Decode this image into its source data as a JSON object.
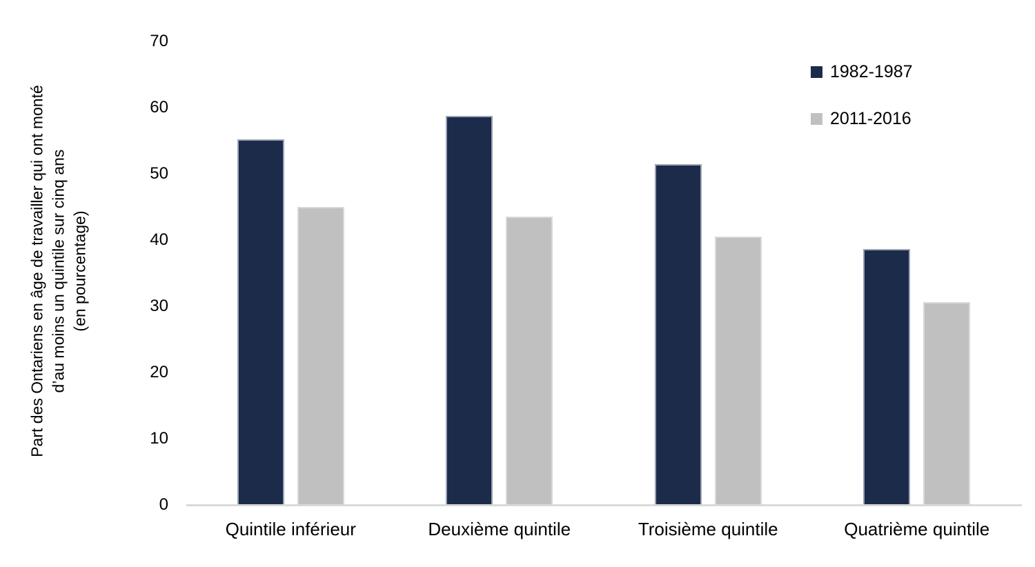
{
  "chart_data": {
    "type": "bar",
    "title": "",
    "ylabel_lines": [
      "Part des Ontariens en âge de travailler qui ont monté",
      "d’au moins un quintile sur cinq ans",
      "(en pourcentage)"
    ],
    "categories": [
      "Quintile inférieur",
      "Deuxième quintile",
      "Troisième quintile",
      "Quatrième quintile"
    ],
    "series": [
      {
        "name": "1982-1987",
        "color": "#1C2B4A",
        "border_color": "#98A4B5",
        "values": [
          55.2,
          58.7,
          51.5,
          38.6
        ]
      },
      {
        "name": "2011-2016",
        "color": "#C0C0C0",
        "border_color": "#D9D9D9",
        "values": [
          45.0,
          43.5,
          40.5,
          30.6
        ]
      }
    ],
    "ylim": [
      0,
      70
    ],
    "yticks": [
      0,
      10,
      20,
      30,
      40,
      50,
      60,
      70
    ],
    "grid": false,
    "legend_position": "top-right",
    "axis_line_color": "#D9D9D9",
    "text_color": "#000000",
    "background_color": "#FFFFFF"
  }
}
